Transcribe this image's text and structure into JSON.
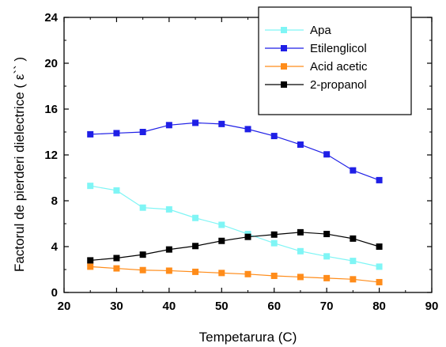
{
  "chart_data": {
    "type": "line",
    "xlabel": "Tempetarura (C)",
    "ylabel": "Factorul de pierderi dielectrice ( ε`` )",
    "xlim": [
      20,
      90
    ],
    "ylim": [
      0,
      24
    ],
    "xticks": [
      20,
      30,
      40,
      50,
      60,
      70,
      80,
      90
    ],
    "yticks": [
      0,
      4,
      8,
      12,
      16,
      20,
      24
    ],
    "grid": false,
    "legend_position": "top-right",
    "x": [
      25,
      30,
      35,
      40,
      45,
      50,
      55,
      60,
      65,
      70,
      75,
      80
    ],
    "series": [
      {
        "name": "Apa",
        "color": "#7ff5f5",
        "marker": "square",
        "values": [
          9.3,
          8.9,
          7.4,
          7.25,
          6.5,
          5.9,
          5.1,
          4.3,
          3.6,
          3.15,
          2.75,
          2.25
        ]
      },
      {
        "name": "Etilenglicol",
        "color": "#1f1fe6",
        "marker": "square",
        "values": [
          13.8,
          13.9,
          14.0,
          14.6,
          14.8,
          14.7,
          14.25,
          13.65,
          12.9,
          12.05,
          10.65,
          9.8
        ]
      },
      {
        "name": "Acid acetic",
        "color": "#ff8c1a",
        "marker": "square",
        "values": [
          2.25,
          2.1,
          1.95,
          1.9,
          1.8,
          1.7,
          1.6,
          1.45,
          1.35,
          1.25,
          1.15,
          0.9
        ]
      },
      {
        "name": "2-propanol",
        "color": "#000000",
        "marker": "square",
        "values": [
          2.8,
          3.0,
          3.3,
          3.75,
          4.05,
          4.5,
          4.85,
          5.05,
          5.25,
          5.1,
          4.7,
          4.0
        ]
      }
    ]
  }
}
